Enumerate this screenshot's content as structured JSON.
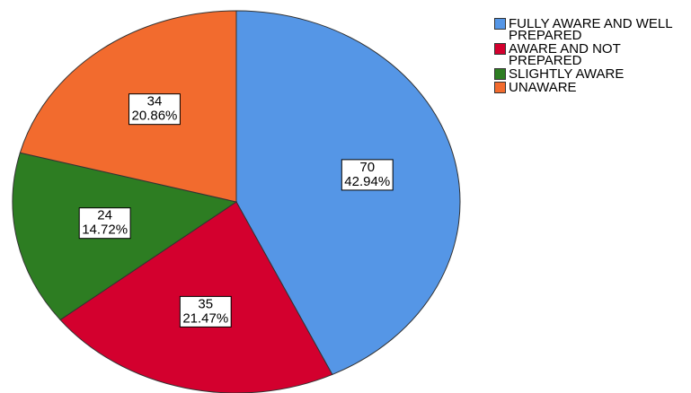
{
  "chart_data": {
    "type": "pie",
    "series": [
      {
        "name": "FULLY AWARE AND WELL PREPARED",
        "color": "#5596e6",
        "values": [
          70
        ]
      },
      {
        "name": "AWARE AND NOT PREPARED",
        "color": "#d3002e",
        "values": [
          35
        ]
      },
      {
        "name": "SLIGHTLY AWARE",
        "color": "#2d7d22",
        "values": [
          24
        ]
      },
      {
        "name": "UNAWARE",
        "color": "#f26b2e",
        "values": [
          34
        ]
      }
    ],
    "percent_labels": [
      "42.94%",
      "21.47%",
      "14.72%",
      "20.86%"
    ],
    "legend": "top-right"
  }
}
